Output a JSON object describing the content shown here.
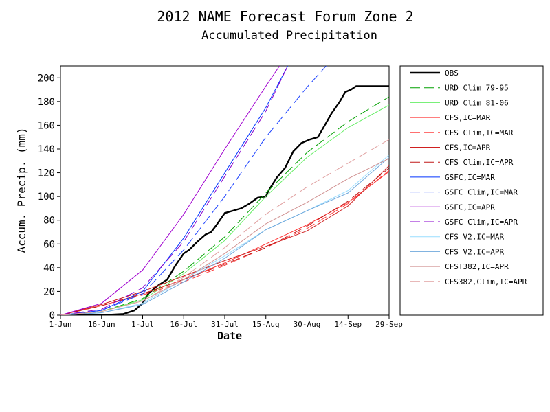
{
  "chart_data": {
    "type": "line",
    "title": "2012 NAME Forecast Forum Zone 2",
    "subtitle": "Accumulated Precipitation",
    "xlabel": "Date",
    "ylabel": "Accum. Precip. (mm)",
    "xlim": [
      "1-Jun",
      "29-Sep"
    ],
    "ylim": [
      0,
      210
    ],
    "xticks": [
      "1-Jun",
      "16-Jun",
      "1-Jul",
      "16-Jul",
      "31-Jul",
      "15-Aug",
      "30-Aug",
      "14-Sep",
      "29-Sep"
    ],
    "yticks": [
      0,
      20,
      40,
      60,
      80,
      100,
      120,
      140,
      160,
      180,
      200
    ],
    "grid": false,
    "legend_position": "right",
    "series": [
      {
        "name": "OBS",
        "color": "#000000",
        "dash": "solid",
        "width": 2.4,
        "points": [
          [
            "1-Jun",
            0
          ],
          [
            "16-Jun",
            0
          ],
          [
            "24-Jun",
            1
          ],
          [
            "28-Jun",
            4
          ],
          [
            "1-Jul",
            10
          ],
          [
            "3-Jul",
            18
          ],
          [
            "6-Jul",
            24
          ],
          [
            "10-Jul",
            30
          ],
          [
            "13-Jul",
            42
          ],
          [
            "16-Jul",
            52
          ],
          [
            "18-Jul",
            55
          ],
          [
            "21-Jul",
            62
          ],
          [
            "24-Jul",
            68
          ],
          [
            "26-Jul",
            70
          ],
          [
            "28-Jul",
            76
          ],
          [
            "31-Jul",
            86
          ],
          [
            "3-Aug",
            88
          ],
          [
            "6-Aug",
            90
          ],
          [
            "9-Aug",
            94
          ],
          [
            "12-Aug",
            99
          ],
          [
            "15-Aug",
            100
          ],
          [
            "16-Aug",
            105
          ],
          [
            "19-Aug",
            116
          ],
          [
            "22-Aug",
            124
          ],
          [
            "25-Aug",
            138
          ],
          [
            "28-Aug",
            145
          ],
          [
            "31-Aug",
            148
          ],
          [
            "3-Sep",
            150
          ],
          [
            "6-Sep",
            162
          ],
          [
            "8-Sep",
            170
          ],
          [
            "11-Sep",
            180
          ],
          [
            "13-Sep",
            188
          ],
          [
            "15-Sep",
            190
          ],
          [
            "17-Sep",
            193
          ],
          [
            "29-Sep",
            193
          ]
        ]
      },
      {
        "name": "URD Clim 79-95",
        "color": "#00a000",
        "dash": "long",
        "width": 1,
        "points": [
          [
            "1-Jun",
            0
          ],
          [
            "16-Jun",
            3
          ],
          [
            "1-Jul",
            14
          ],
          [
            "16-Jul",
            37
          ],
          [
            "31-Jul",
            66
          ],
          [
            "15-Aug",
            103
          ],
          [
            "30-Aug",
            137
          ],
          [
            "14-Sep",
            163
          ],
          [
            "29-Sep",
            184
          ]
        ]
      },
      {
        "name": "URD Clim 81-06",
        "color": "#66ee66",
        "dash": "solid",
        "width": 1,
        "points": [
          [
            "1-Jun",
            0
          ],
          [
            "16-Jun",
            3
          ],
          [
            "1-Jul",
            13
          ],
          [
            "16-Jul",
            35
          ],
          [
            "31-Jul",
            63
          ],
          [
            "15-Aug",
            100
          ],
          [
            "30-Aug",
            133
          ],
          [
            "14-Sep",
            158
          ],
          [
            "29-Sep",
            177
          ]
        ]
      },
      {
        "name": "CFS,IC=MAR",
        "color": "#ff3030",
        "dash": "solid",
        "width": 1,
        "points": [
          [
            "1-Jun",
            0
          ],
          [
            "16-Jun",
            8
          ],
          [
            "1-Jul",
            18
          ],
          [
            "16-Jul",
            30
          ],
          [
            "31-Jul",
            44
          ],
          [
            "15-Aug",
            60
          ],
          [
            "30-Aug",
            76
          ],
          [
            "14-Sep",
            95
          ],
          [
            "29-Sep",
            121
          ]
        ]
      },
      {
        "name": "CFS Clim,IC=MAR",
        "color": "#ff4040",
        "dash": "long",
        "width": 1,
        "points": [
          [
            "1-Jun",
            0
          ],
          [
            "16-Jun",
            8
          ],
          [
            "1-Jul",
            17
          ],
          [
            "16-Jul",
            28
          ],
          [
            "31-Jul",
            42
          ],
          [
            "15-Aug",
            57
          ],
          [
            "30-Aug",
            73
          ],
          [
            "14-Sep",
            94
          ],
          [
            "29-Sep",
            122
          ]
        ]
      },
      {
        "name": "CFS,IC=APR",
        "color": "#d02020",
        "dash": "solid",
        "width": 1,
        "points": [
          [
            "1-Jun",
            0
          ],
          [
            "16-Jun",
            9
          ],
          [
            "1-Jul",
            20
          ],
          [
            "16-Jul",
            33
          ],
          [
            "31-Jul",
            46
          ],
          [
            "15-Aug",
            58
          ],
          [
            "30-Aug",
            71
          ],
          [
            "14-Sep",
            92
          ],
          [
            "29-Sep",
            126
          ]
        ]
      },
      {
        "name": "CFS Clim,IC=APR",
        "color": "#c01818",
        "dash": "long",
        "width": 1,
        "points": [
          [
            "1-Jun",
            0
          ],
          [
            "16-Jun",
            8
          ],
          [
            "1-Jul",
            18
          ],
          [
            "16-Jul",
            30
          ],
          [
            "31-Jul",
            43
          ],
          [
            "15-Aug",
            57
          ],
          [
            "30-Aug",
            75
          ],
          [
            "14-Sep",
            96
          ],
          [
            "29-Sep",
            124
          ]
        ]
      },
      {
        "name": "GSFC,IC=MAR",
        "color": "#0033ff",
        "dash": "solid",
        "width": 1,
        "points": [
          [
            "1-Jun",
            0
          ],
          [
            "16-Jun",
            4
          ],
          [
            "1-Jul",
            20
          ],
          [
            "16-Jul",
            65
          ],
          [
            "31-Jul",
            120
          ],
          [
            "15-Aug",
            175
          ],
          [
            "23-Aug",
            210
          ]
        ]
      },
      {
        "name": "GSFC Clim,IC=MAR",
        "color": "#1a40ff",
        "dash": "long",
        "width": 1,
        "points": [
          [
            "1-Jun",
            0
          ],
          [
            "16-Jun",
            4
          ],
          [
            "1-Jul",
            18
          ],
          [
            "16-Jul",
            55
          ],
          [
            "31-Jul",
            100
          ],
          [
            "15-Aug",
            150
          ],
          [
            "30-Aug",
            192
          ],
          [
            "6-Sep",
            210
          ]
        ]
      },
      {
        "name": "GSFC,IC=APR",
        "color": "#a000d0",
        "dash": "solid",
        "width": 1,
        "points": [
          [
            "1-Jun",
            0
          ],
          [
            "16-Jun",
            10
          ],
          [
            "1-Jul",
            38
          ],
          [
            "16-Jul",
            85
          ],
          [
            "31-Jul",
            140
          ],
          [
            "15-Aug",
            193
          ],
          [
            "20-Aug",
            210
          ]
        ]
      },
      {
        "name": "GSFC Clim,IC=APR",
        "color": "#8800cc",
        "dash": "long",
        "width": 1,
        "points": [
          [
            "1-Jun",
            0
          ],
          [
            "16-Jun",
            5
          ],
          [
            "1-Jul",
            23
          ],
          [
            "16-Jul",
            62
          ],
          [
            "31-Jul",
            117
          ],
          [
            "15-Aug",
            172
          ],
          [
            "23-Aug",
            210
          ]
        ]
      },
      {
        "name": "CFS V2,IC=MAR",
        "color": "#99ddff",
        "dash": "solid",
        "width": 1,
        "points": [
          [
            "1-Jun",
            0
          ],
          [
            "16-Jun",
            2
          ],
          [
            "1-Jul",
            10
          ],
          [
            "16-Jul",
            30
          ],
          [
            "31-Jul",
            50
          ],
          [
            "15-Aug",
            72
          ],
          [
            "30-Aug",
            88
          ],
          [
            "14-Sep",
            105
          ],
          [
            "29-Sep",
            135
          ]
        ]
      },
      {
        "name": "CFS V2,IC=APR",
        "color": "#6fa8dc",
        "dash": "solid",
        "width": 1,
        "points": [
          [
            "1-Jun",
            0
          ],
          [
            "16-Jun",
            2
          ],
          [
            "1-Jul",
            9
          ],
          [
            "16-Jul",
            28
          ],
          [
            "31-Jul",
            48
          ],
          [
            "15-Aug",
            72
          ],
          [
            "30-Aug",
            88
          ],
          [
            "14-Sep",
            103
          ],
          [
            "29-Sep",
            133
          ]
        ]
      },
      {
        "name": "CFST382,IC=APR",
        "color": "#d09090",
        "dash": "solid",
        "width": 1,
        "points": [
          [
            "1-Jun",
            0
          ],
          [
            "16-Jun",
            3
          ],
          [
            "1-Jul",
            12
          ],
          [
            "16-Jul",
            30
          ],
          [
            "31-Jul",
            52
          ],
          [
            "15-Aug",
            77
          ],
          [
            "30-Aug",
            95
          ],
          [
            "14-Sep",
            115
          ],
          [
            "29-Sep",
            132
          ]
        ]
      },
      {
        "name": "CFS382,Clim,IC=APR",
        "color": "#e0a0a0",
        "dash": "long",
        "width": 1,
        "points": [
          [
            "1-Jun",
            0
          ],
          [
            "16-Jun",
            3
          ],
          [
            "1-Jul",
            12
          ],
          [
            "16-Jul",
            32
          ],
          [
            "31-Jul",
            57
          ],
          [
            "15-Aug",
            85
          ],
          [
            "30-Aug",
            108
          ],
          [
            "14-Sep",
            128
          ],
          [
            "29-Sep",
            148
          ]
        ]
      }
    ]
  }
}
